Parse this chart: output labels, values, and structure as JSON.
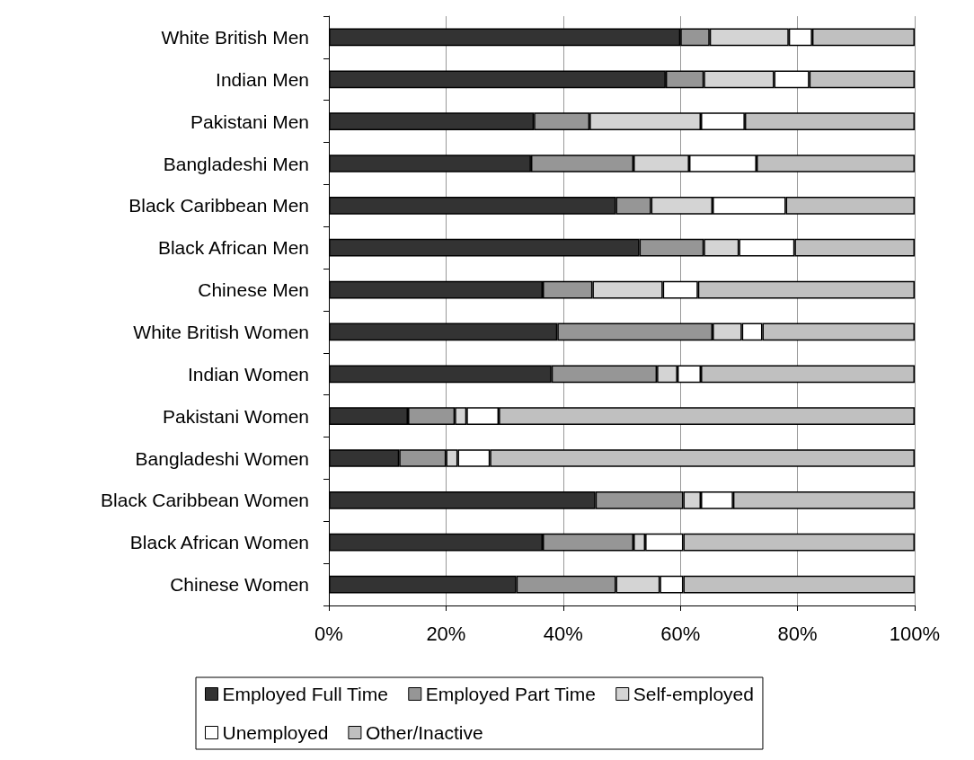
{
  "chart_data": {
    "type": "bar",
    "orientation": "horizontal",
    "stacked": true,
    "categories": [
      "White British Men",
      "Indian Men",
      "Pakistani Men",
      "Bangladeshi Men",
      "Black Caribbean Men",
      "Black African Men",
      "Chinese Men",
      "White British Women",
      "Indian Women",
      "Pakistani Women",
      "Bangladeshi Women",
      "Black Caribbean Women",
      "Black African Women",
      "Chinese Women"
    ],
    "series": [
      {
        "name": "Employed Full Time",
        "color": "#333333",
        "values": [
          60,
          57.5,
          35,
          34.5,
          49,
          53,
          36.5,
          39,
          38,
          13.5,
          12,
          45.5,
          36.5,
          32
        ]
      },
      {
        "name": "Employed Part Time",
        "color": "#969696",
        "values": [
          5,
          6.5,
          9.5,
          17.5,
          6,
          11,
          8.5,
          26.5,
          18,
          8,
          8,
          15,
          15.5,
          17
        ]
      },
      {
        "name": "Self-employed",
        "color": "#d4d4d4",
        "values": [
          13.5,
          12,
          19,
          9.5,
          10.5,
          6,
          12,
          5,
          3.5,
          2,
          2,
          3,
          2,
          7.5
        ]
      },
      {
        "name": "Unemployed",
        "color": "#ffffff",
        "values": [
          4,
          6,
          7.5,
          11.5,
          12.5,
          9.5,
          6,
          3.5,
          4,
          5.5,
          5.5,
          5.5,
          6.5,
          4
        ]
      },
      {
        "name": "Other/Inactive",
        "color": "#c0c0c0",
        "values": [
          17.5,
          18,
          29,
          27,
          22,
          20.5,
          37,
          26,
          36.5,
          71,
          72.5,
          31,
          39.5,
          39.5
        ]
      }
    ],
    "xlim": [
      0,
      100
    ],
    "xticks": [
      {
        "value": 0,
        "label": "0%"
      },
      {
        "value": 20,
        "label": "20%"
      },
      {
        "value": 40,
        "label": "40%"
      },
      {
        "value": 60,
        "label": "60%"
      },
      {
        "value": 80,
        "label": "80%"
      },
      {
        "value": 100,
        "label": "100%"
      }
    ],
    "grid": "x",
    "legend": "bottom"
  }
}
